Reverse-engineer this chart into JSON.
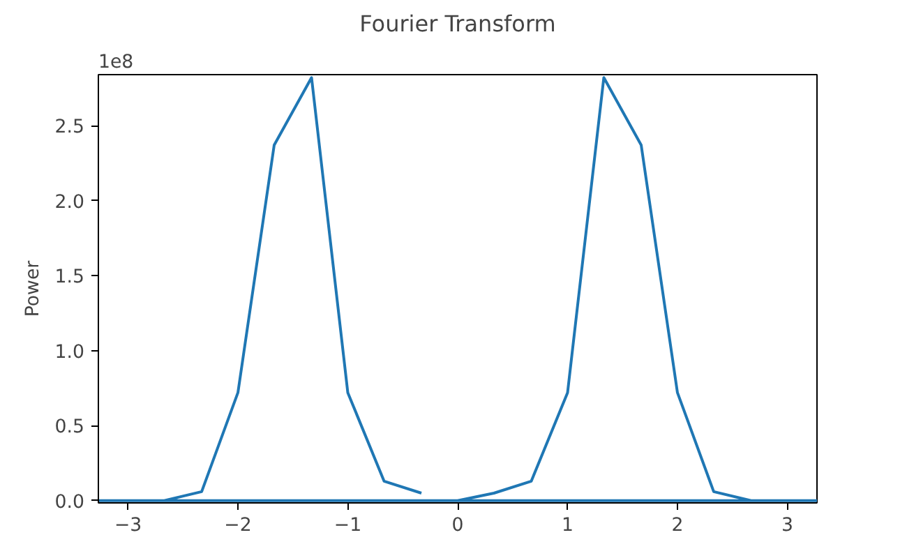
{
  "chart_data": {
    "type": "line",
    "title": "Fourier Transform",
    "ylabel": "Power",
    "annotations": [
      "1e8"
    ],
    "series": [
      {
        "color": "#1f77b4",
        "x": [
          0,
          0.33,
          0.67,
          1.0,
          1.33,
          1.67,
          2.0,
          2.33,
          2.67,
          3.0,
          3.27,
          -3.27,
          -3.0,
          -2.67,
          -2.33,
          -2.0,
          -1.67,
          -1.33,
          -1.0,
          -0.67,
          -0.33
        ],
        "values": [
          0,
          0.05,
          0.13,
          0.72,
          2.82,
          2.37,
          0.72,
          0.06,
          0,
          0,
          0,
          0,
          0,
          0,
          0.06,
          0.72,
          2.37,
          2.82,
          0.72,
          0.13,
          0.05
        ]
      }
    ],
    "xlim": [
      -3.27,
      3.27
    ],
    "xticks": [
      -3,
      -2,
      -1,
      0,
      1,
      2,
      3
    ],
    "ylim": [
      -0.015,
      2.84
    ],
    "yticks": [
      {
        "value": 0,
        "label": "0.0"
      },
      {
        "value": 0.5,
        "label": "0.5"
      },
      {
        "value": 1,
        "label": "1.0"
      },
      {
        "value": 1.5,
        "label": "1.5"
      },
      {
        "value": 2,
        "label": "2.0"
      },
      {
        "value": 2.5,
        "label": "2.5"
      }
    ],
    "grid": false,
    "marker": "none",
    "line_style": "solid"
  }
}
